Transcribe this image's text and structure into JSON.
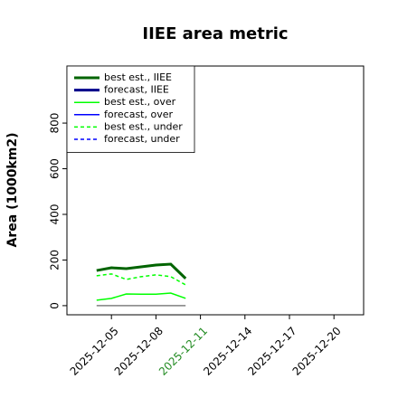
{
  "chart_data": {
    "type": "line",
    "title": "IIEE area metric",
    "y_label": "Area (1000km2)",
    "x": [
      "2025-12-04",
      "2025-12-05",
      "2025-12-06",
      "2025-12-07",
      "2025-12-08",
      "2025-12-09",
      "2025-12-10"
    ],
    "series": [
      {
        "name": "best est., IIEE",
        "color": "#006400",
        "width": 3,
        "dash": false,
        "values": [
          154,
          166,
          162,
          170,
          178,
          182,
          119
        ]
      },
      {
        "name": "forecast, IIEE",
        "color": "#00008b",
        "width": 3,
        "dash": false,
        "values": [
          null,
          null,
          null,
          null,
          null,
          null,
          null
        ]
      },
      {
        "name": "best est., over",
        "color": "#00ff00",
        "width": 1.5,
        "dash": false,
        "values": [
          24,
          32,
          51,
          50,
          50,
          55,
          32
        ]
      },
      {
        "name": "forecast, over",
        "color": "#0000ff",
        "width": 1.5,
        "dash": false,
        "values": [
          null,
          null,
          null,
          null,
          null,
          null,
          null
        ]
      },
      {
        "name": "best est., under",
        "color": "#00ff00",
        "width": 1.5,
        "dash": true,
        "values": [
          131,
          139,
          115,
          127,
          135,
          127,
          91
        ]
      },
      {
        "name": "forecast, under",
        "color": "#0000ff",
        "width": 1.5,
        "dash": true,
        "values": [
          null,
          null,
          null,
          null,
          null,
          null,
          null
        ]
      },
      {
        "color": "#808080",
        "width": 1.5,
        "dash": false,
        "values": [
          0,
          0,
          0,
          0,
          0,
          0,
          0
        ]
      }
    ],
    "xlim": [
      "2025-12-02",
      "2025-12-22"
    ],
    "xticks": [
      "2025-12-05",
      "2025-12-08",
      "2025-12-11",
      "2025-12-14",
      "2025-12-17",
      "2025-12-20"
    ],
    "xtick_colors": [
      "#000000",
      "#000000",
      "#228b22",
      "#000000",
      "#000000",
      "#000000"
    ],
    "ylim": [
      -40,
      1050
    ],
    "yticks": [
      0,
      200,
      400,
      600,
      800
    ],
    "grid": false,
    "legend": "upper left"
  }
}
